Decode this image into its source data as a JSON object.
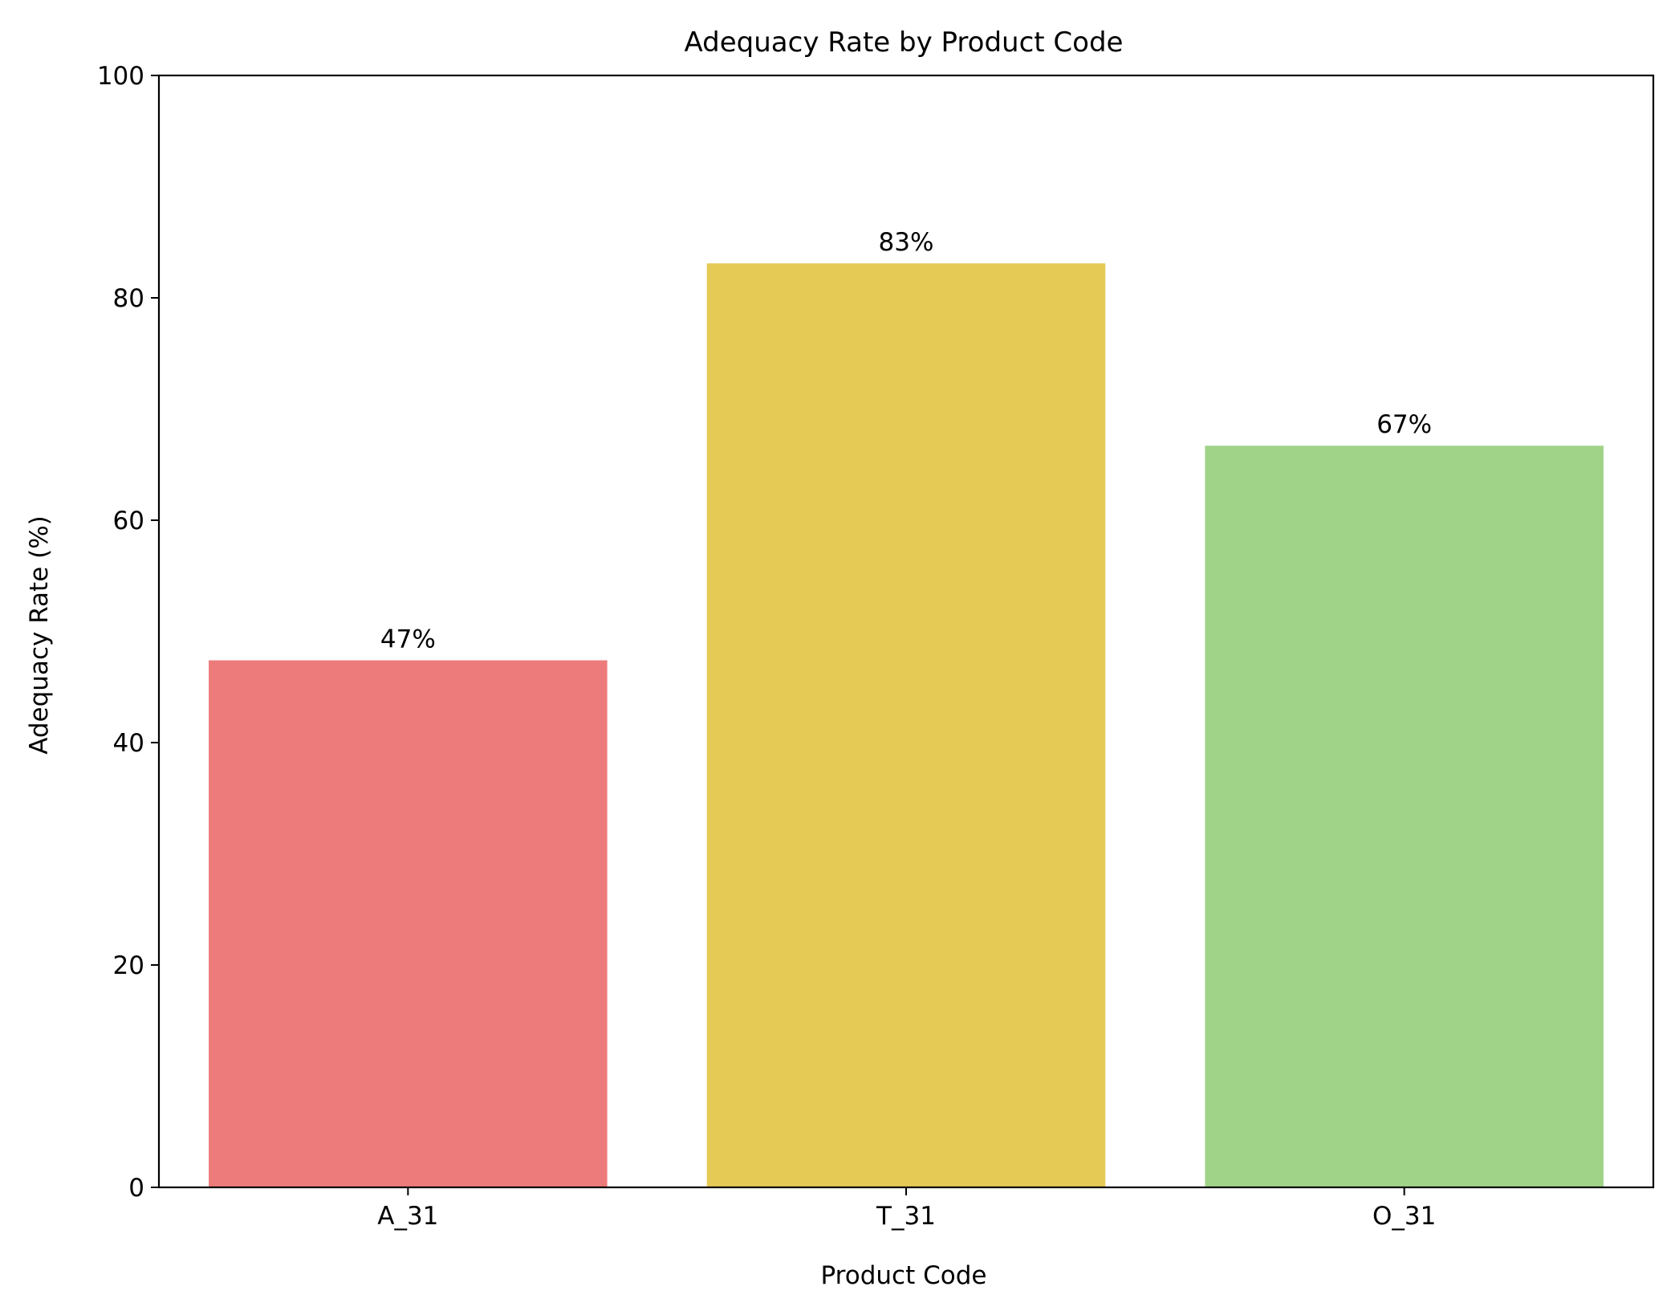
{
  "chart_data": {
    "type": "bar",
    "title": "Adequacy Rate by Product Code",
    "xlabel": "Product Code",
    "ylabel": "Adequacy Rate (%)",
    "categories": [
      "A_31",
      "T_31",
      "O_31"
    ],
    "values": [
      47.4,
      83.1,
      66.7
    ],
    "value_labels": [
      "47%",
      "83%",
      "67%"
    ],
    "colors": [
      "#ed7b7b",
      "#e6ca56",
      "#a0d388"
    ],
    "ylim": [
      0,
      100
    ],
    "yticks": [
      0,
      20,
      40,
      60,
      80,
      100
    ],
    "grid": false,
    "legend": "none"
  }
}
